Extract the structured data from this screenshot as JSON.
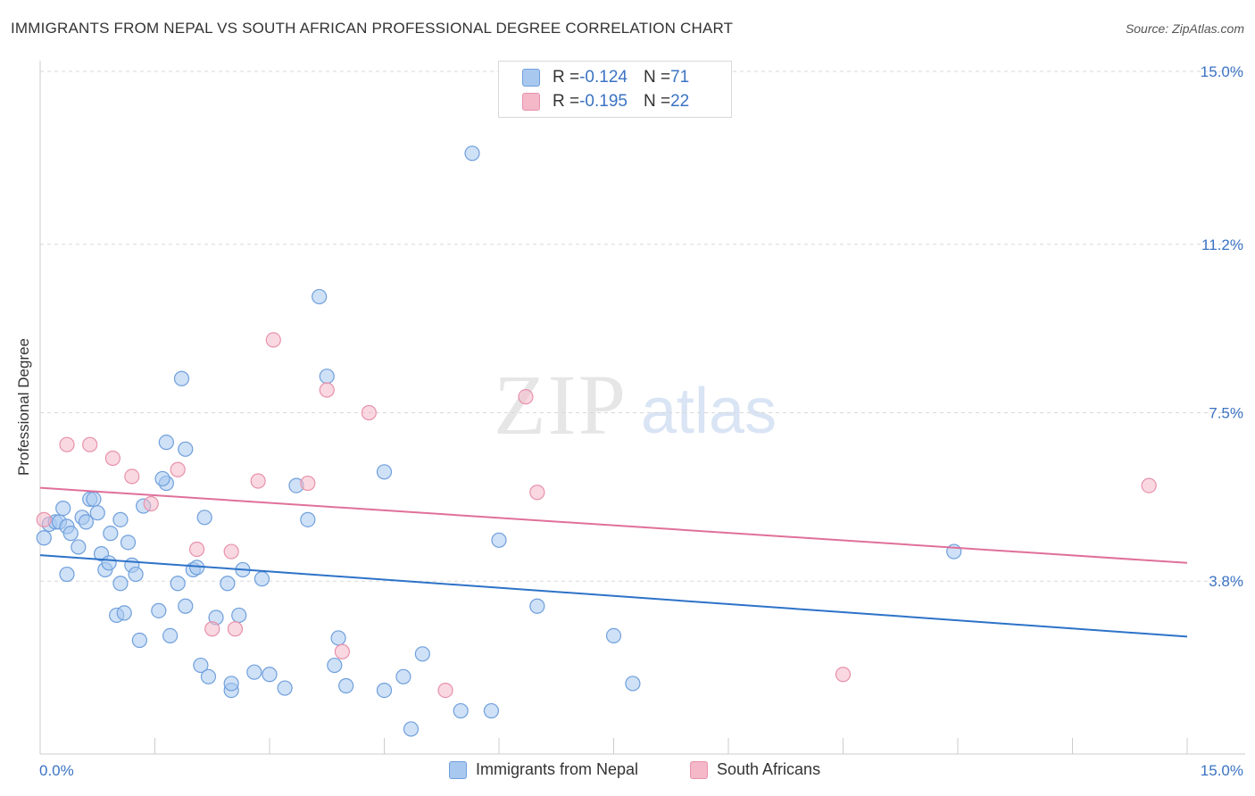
{
  "title": "IMMIGRANTS FROM NEPAL VS SOUTH AFRICAN PROFESSIONAL DEGREE CORRELATION CHART",
  "source": "Source: ZipAtlas.com",
  "watermark": {
    "zip": "ZIP",
    "atlas": "atlas"
  },
  "legend": {
    "rows": [
      {
        "r_label": "R = ",
        "r_value": "-0.124",
        "n_label": "N = ",
        "n_value": "71",
        "color": "#a8c8f0"
      },
      {
        "r_label": "R = ",
        "r_value": "-0.195",
        "n_label": "N = ",
        "n_value": "22",
        "color": "#f4b8c8"
      }
    ]
  },
  "bottom_legend": [
    {
      "label": "Immigrants from Nepal",
      "color": "#a8c8f0"
    },
    {
      "label": "South Africans",
      "color": "#f4b8c8"
    }
  ],
  "colors": {
    "blue_fill": "#a8c8f0",
    "blue_stroke": "#6f9fdc",
    "blue_line": "#2d72c8",
    "pink_fill": "#f4b8c8",
    "pink_stroke": "#e891ab",
    "pink_line": "#e0709a",
    "axis_text": "#3b73c4",
    "grid": "#d8d8d8"
  },
  "chart_data": {
    "type": "scatter",
    "title": "IMMIGRANTS FROM NEPAL VS SOUTH AFRICAN PROFESSIONAL DEGREE CORRELATION CHART",
    "xlabel": "",
    "ylabel": "Professional Degree",
    "xlim": [
      0,
      15
    ],
    "ylim": [
      0,
      15
    ],
    "x_tick_labels": [
      "0.0%",
      "15.0%"
    ],
    "y_ticks": [
      3.8,
      7.5,
      11.2,
      15.0
    ],
    "y_tick_labels": [
      "3.8%",
      "7.5%",
      "11.2%",
      "15.0%"
    ],
    "series": [
      {
        "name": "Immigrants from Nepal",
        "color": "#a8c8f0",
        "trend": {
          "x": [
            0,
            15
          ],
          "y": [
            4.37,
            2.58
          ]
        },
        "points": [
          [
            0.05,
            4.75
          ],
          [
            0.12,
            5.05
          ],
          [
            0.2,
            5.1
          ],
          [
            0.25,
            5.1
          ],
          [
            0.3,
            5.4
          ],
          [
            0.35,
            5.0
          ],
          [
            0.4,
            4.85
          ],
          [
            0.5,
            4.55
          ],
          [
            0.55,
            5.2
          ],
          [
            0.6,
            5.1
          ],
          [
            0.65,
            5.6
          ],
          [
            0.7,
            5.6
          ],
          [
            0.75,
            5.3
          ],
          [
            0.35,
            3.95
          ],
          [
            0.8,
            4.4
          ],
          [
            0.85,
            4.05
          ],
          [
            0.9,
            4.2
          ],
          [
            0.92,
            4.85
          ],
          [
            1.05,
            5.15
          ],
          [
            1.0,
            3.05
          ],
          [
            1.05,
            3.75
          ],
          [
            1.1,
            3.1
          ],
          [
            1.15,
            4.65
          ],
          [
            1.2,
            4.15
          ],
          [
            1.25,
            3.95
          ],
          [
            1.35,
            5.45
          ],
          [
            1.3,
            2.5
          ],
          [
            1.65,
            6.85
          ],
          [
            1.65,
            5.95
          ],
          [
            1.6,
            6.05
          ],
          [
            1.55,
            3.15
          ],
          [
            1.7,
            2.6
          ],
          [
            1.8,
            3.75
          ],
          [
            1.85,
            8.25
          ],
          [
            1.9,
            6.7
          ],
          [
            1.9,
            3.25
          ],
          [
            2.0,
            4.05
          ],
          [
            2.05,
            4.1
          ],
          [
            2.1,
            1.95
          ],
          [
            2.15,
            5.2
          ],
          [
            2.2,
            1.7
          ],
          [
            2.3,
            3.0
          ],
          [
            2.45,
            3.75
          ],
          [
            2.5,
            1.4
          ],
          [
            2.5,
            1.55
          ],
          [
            2.6,
            3.05
          ],
          [
            2.65,
            4.05
          ],
          [
            2.8,
            1.8
          ],
          [
            2.9,
            3.85
          ],
          [
            3.0,
            1.75
          ],
          [
            3.2,
            1.45
          ],
          [
            3.35,
            5.9
          ],
          [
            3.5,
            5.15
          ],
          [
            3.65,
            10.05
          ],
          [
            3.75,
            8.3
          ],
          [
            3.85,
            1.95
          ],
          [
            3.9,
            2.55
          ],
          [
            4.0,
            1.5
          ],
          [
            4.5,
            6.2
          ],
          [
            4.5,
            1.4
          ],
          [
            4.75,
            1.7
          ],
          [
            4.85,
            0.55
          ],
          [
            5.0,
            2.2
          ],
          [
            5.5,
            0.95
          ],
          [
            5.65,
            13.2
          ],
          [
            5.9,
            0.95
          ],
          [
            6.0,
            4.7
          ],
          [
            6.5,
            3.25
          ],
          [
            7.5,
            2.6
          ],
          [
            7.75,
            1.55
          ],
          [
            11.95,
            4.45
          ]
        ]
      },
      {
        "name": "South Africans",
        "color": "#f4b8c8",
        "trend": {
          "x": [
            0,
            15
          ],
          "y": [
            5.85,
            4.2
          ]
        },
        "points": [
          [
            0.05,
            5.15
          ],
          [
            0.35,
            6.8
          ],
          [
            0.65,
            6.8
          ],
          [
            0.95,
            6.5
          ],
          [
            1.2,
            6.1
          ],
          [
            1.45,
            5.5
          ],
          [
            1.8,
            6.25
          ],
          [
            2.05,
            4.5
          ],
          [
            2.25,
            2.75
          ],
          [
            2.5,
            4.45
          ],
          [
            2.55,
            2.75
          ],
          [
            2.85,
            6.0
          ],
          [
            3.05,
            9.1
          ],
          [
            3.5,
            5.95
          ],
          [
            3.75,
            8.0
          ],
          [
            3.95,
            2.25
          ],
          [
            4.3,
            7.5
          ],
          [
            5.3,
            1.4
          ],
          [
            6.35,
            7.85
          ],
          [
            6.5,
            5.75
          ],
          [
            10.5,
            1.75
          ],
          [
            14.5,
            5.9
          ]
        ]
      }
    ]
  }
}
